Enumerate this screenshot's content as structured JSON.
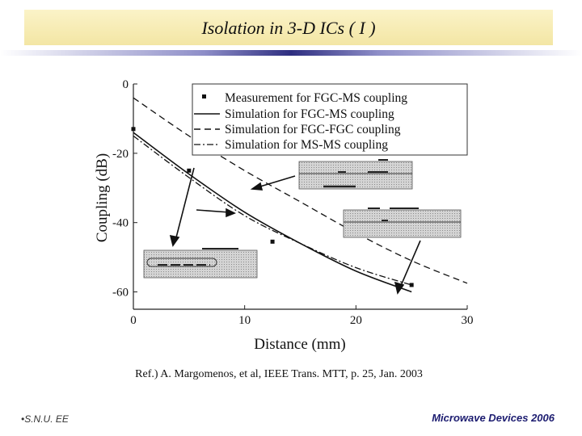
{
  "header": {
    "title": "Isolation in 3-D ICs ( I )"
  },
  "reference": "Ref.) A. Margomenos, et al, IEEE Trans. MTT, p. 25, Jan. 2003",
  "footer": {
    "left": "•S.N.U. EE",
    "right": "Microwave Devices 2006"
  },
  "colors": {
    "title_bg": "#f6eab4",
    "rule": "#2e2e80",
    "footer_text": "#1c1c70",
    "inset_fill": "#c8c8c8"
  },
  "chart_data": {
    "type": "line",
    "xlabel": "Distance (mm)",
    "ylabel": "Coupling (dB)",
    "xlim": [
      0,
      30
    ],
    "ylim": [
      -65,
      0
    ],
    "x_ticks": [
      "0",
      "10",
      "20",
      "30"
    ],
    "y_ticks": [
      "0",
      "-20",
      "-40",
      "-60"
    ],
    "grid": false,
    "legend_position": "top-right",
    "series": [
      {
        "name": "Measurement for FGC-MS coupling",
        "style": "markers",
        "x": [
          0,
          5,
          12.5,
          25
        ],
        "y": [
          -13,
          -25,
          -45.5,
          -58
        ]
      },
      {
        "name": "Simulation for FGC-MS coupling",
        "style": "solid",
        "x": [
          0,
          5,
          10,
          15,
          20,
          25
        ],
        "y": [
          -14,
          -26,
          -37,
          -46,
          -54,
          -60
        ]
      },
      {
        "name": "Simulation for FGC-FGC coupling",
        "style": "dashed",
        "x": [
          0,
          5,
          10,
          15,
          20,
          25,
          30
        ],
        "y": [
          -4,
          -15,
          -25,
          -34,
          -43,
          -51,
          -57.5
        ]
      },
      {
        "name": "Simulation for MS-MS coupling",
        "style": "dashdot",
        "x": [
          0,
          5,
          10,
          15,
          20,
          25
        ],
        "y": [
          -15,
          -27,
          -38,
          -46,
          -53,
          -58
        ]
      }
    ]
  }
}
